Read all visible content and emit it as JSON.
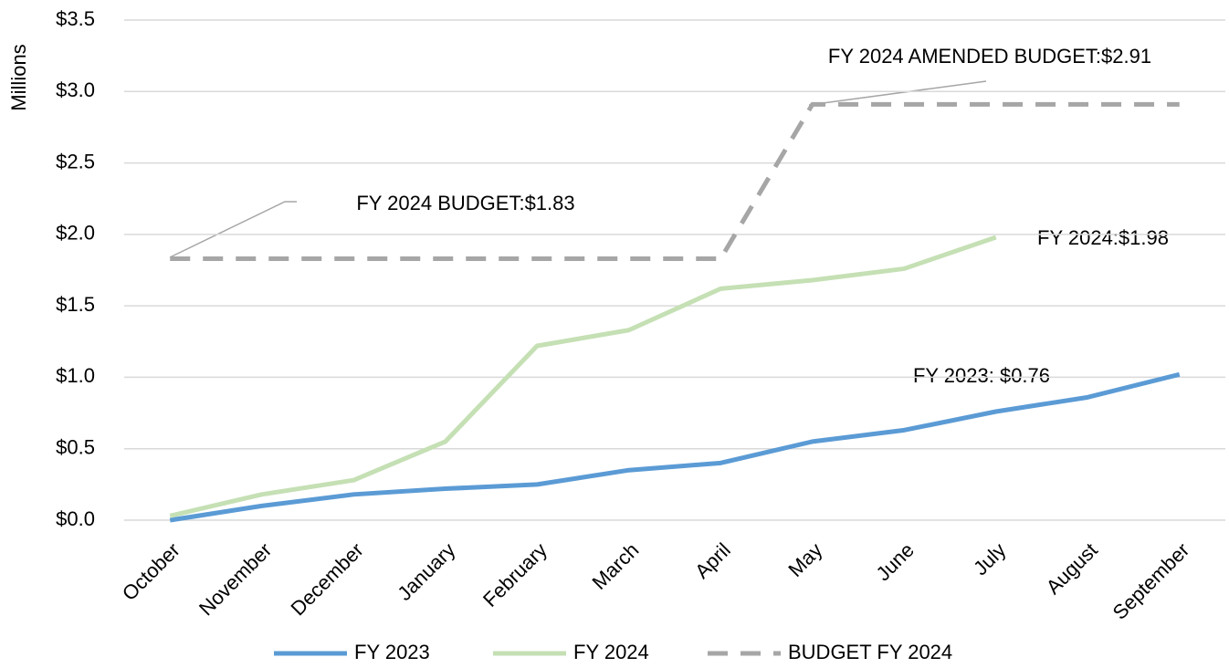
{
  "chart_data": {
    "type": "line",
    "y_label": "Millions",
    "categories": [
      "October",
      "November",
      "December",
      "January",
      "February",
      "March",
      "April",
      "May",
      "June",
      "July",
      "August",
      "September"
    ],
    "series": [
      {
        "name": "FY 2023",
        "color": "#5b9bd5",
        "style": "solid",
        "values": [
          0,
          0.1,
          0.18,
          0.22,
          0.25,
          0.35,
          0.4,
          0.55,
          0.63,
          0.76,
          0.86,
          1.02
        ]
      },
      {
        "name": "FY 2024",
        "color": "#c5e0b4",
        "style": "solid",
        "values": [
          0.03,
          0.18,
          0.28,
          0.55,
          1.22,
          1.33,
          1.62,
          1.68,
          1.76,
          1.98,
          null,
          null
        ]
      },
      {
        "name": "BUDGET FY 2024",
        "color": "#a6a6a6",
        "style": "dashed",
        "values": [
          1.83,
          1.83,
          1.83,
          1.83,
          1.83,
          1.83,
          1.83,
          2.91,
          2.91,
          2.91,
          2.91,
          2.91
        ]
      }
    ],
    "ylim": [
      0,
      3.5
    ],
    "yticks": [
      {
        "value": 0,
        "label": "$0.0"
      },
      {
        "value": 0.5,
        "label": "$0.5"
      },
      {
        "value": 1,
        "label": "$1.0"
      },
      {
        "value": 1.5,
        "label": "$1.5"
      },
      {
        "value": 2,
        "label": "$2.0"
      },
      {
        "value": 2.5,
        "label": "$2.5"
      },
      {
        "value": 3,
        "label": "$3.0"
      },
      {
        "value": 3.5,
        "label": "$3.5"
      }
    ],
    "grid": true,
    "legend": "bottom",
    "annotations": [
      "FY 2024 AMENDED BUDGET:$2.91",
      "FY 2024 BUDGET:$1.83",
      "FY 2024:$1.98",
      "FY 2023: $0.76"
    ]
  }
}
